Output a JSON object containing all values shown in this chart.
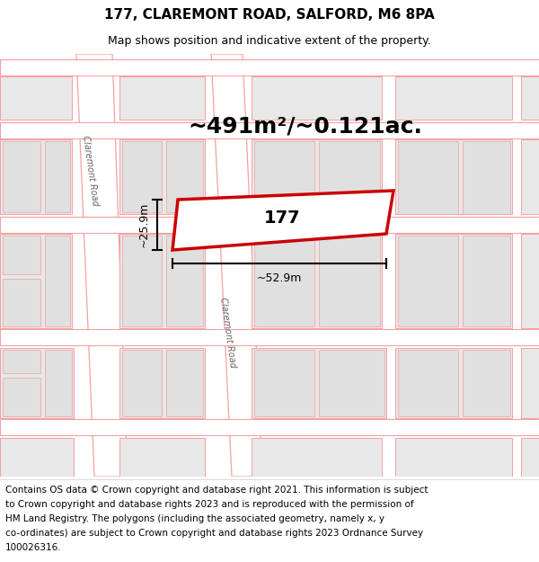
{
  "title": "177, CLAREMONT ROAD, SALFORD, M6 8PA",
  "subtitle": "Map shows position and indicative extent of the property.",
  "area_text": "~491m²/~0.121ac.",
  "property_label": "177",
  "width_label": "~52.9m",
  "height_label": "~25.9m",
  "road_label_left": "Claremont Road",
  "road_label_right": "Claremont Road",
  "copyright_lines": [
    "Contains OS data © Crown copyright and database right 2021. This information is subject",
    "to Crown copyright and database rights 2023 and is reproduced with the permission of",
    "HM Land Registry. The polygons (including the associated geometry, namely x, y",
    "co-ordinates) are subject to Crown copyright and database rights 2023 Ordnance Survey",
    "100026316."
  ],
  "bg_color": "#f2f2f2",
  "road_color": "#f5a0a0",
  "road_fill": "#ffffff",
  "building_fill": "#e8e8e8",
  "building_edge": "#f5a0a0",
  "property_color": "#cc0000",
  "property_fill": "#ffffff",
  "dim_color": "#000000",
  "title_color": "#000000",
  "title_fontsize": 11,
  "subtitle_fontsize": 9,
  "area_fontsize": 18,
  "label_fontsize": 14,
  "copyright_fontsize": 7.5
}
